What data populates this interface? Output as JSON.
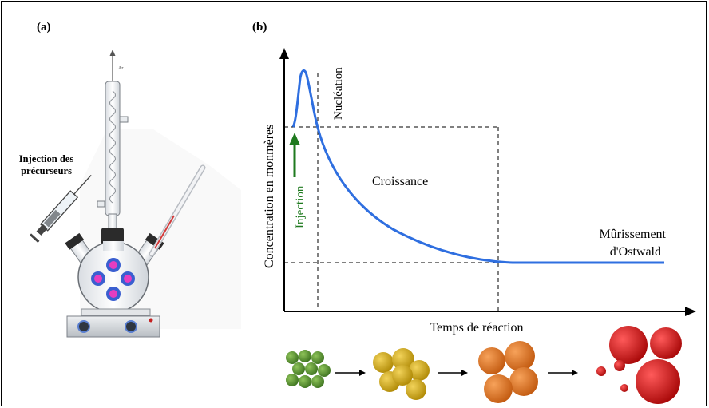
{
  "panel_a": {
    "label": "(a)",
    "gas_label": "Ar",
    "injection_label_line1": "Injection des",
    "injection_label_line2": "précurseurs"
  },
  "panel_b": {
    "label": "(b)",
    "xlabel": "Temps de réaction",
    "ylabel": "Concentration en monmères",
    "annotations": {
      "nucleation": "Nucléation",
      "injection": "Injection",
      "croissance": "Croissance",
      "murissement_line1": "Mûrissement",
      "murissement_line2": "d'Ostwald"
    }
  },
  "colors": {
    "curve": "#2f6fe0",
    "injection_arrow": "#1f7a1f",
    "stage1": "#4f8f2a",
    "stage2": "#d4a80c",
    "stage3": "#e0741c",
    "stage4": "#cc1010",
    "flask_dots": "#e63dc0",
    "flask_dots_ring": "#3a5fd0"
  }
}
